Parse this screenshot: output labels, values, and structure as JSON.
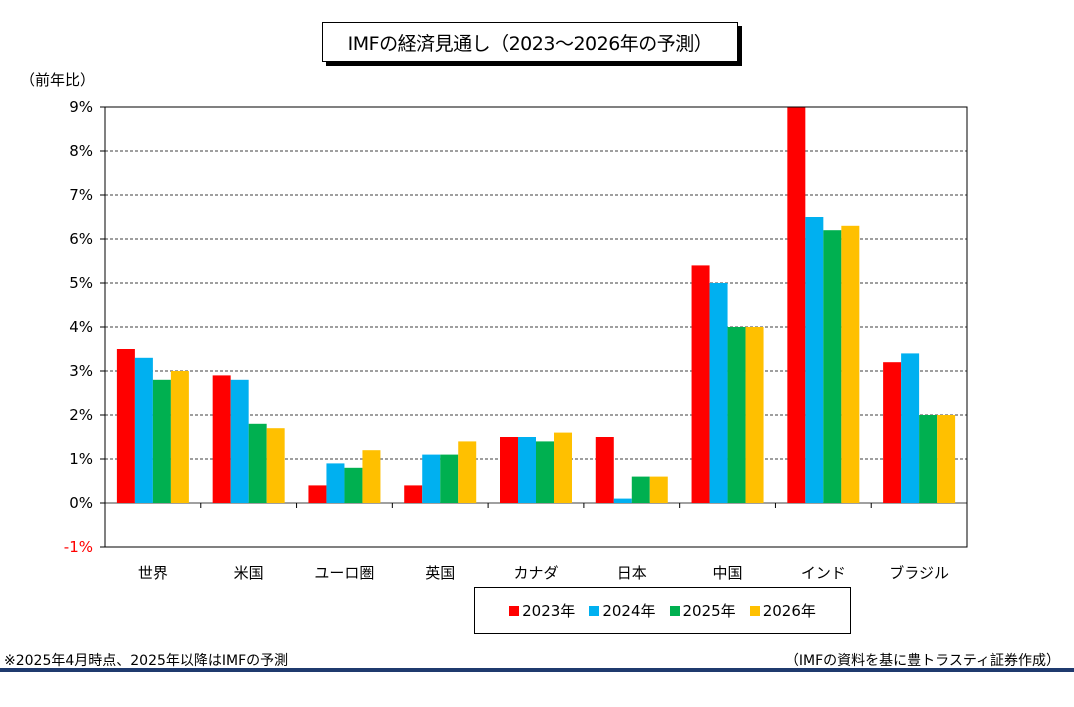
{
  "title": "IMFの経済見通し（2023〜2026年の予測）",
  "unit_label": "（前年比）",
  "footnote_left": "※2025年4月時点、2025年以降はIMFの予測",
  "footnote_right": "（IMFの資料を基に豊トラスティ証券作成）",
  "chart_data": {
    "type": "bar",
    "categories": [
      "世界",
      "米国",
      "ユーロ圏",
      "英国",
      "カナダ",
      "日本",
      "中国",
      "インド",
      "ブラジル"
    ],
    "series": [
      {
        "name": "2023年",
        "color": "#ff0000",
        "values": [
          3.5,
          2.9,
          0.4,
          0.4,
          1.5,
          1.5,
          5.4,
          9.2,
          3.2
        ]
      },
      {
        "name": "2024年",
        "color": "#00b0f0",
        "values": [
          3.3,
          2.8,
          0.9,
          1.1,
          1.5,
          0.1,
          5.0,
          6.5,
          3.4
        ]
      },
      {
        "name": "2025年",
        "color": "#00b050",
        "values": [
          2.8,
          1.8,
          0.8,
          1.1,
          1.4,
          0.6,
          4.0,
          6.2,
          2.0
        ]
      },
      {
        "name": "2026年",
        "color": "#ffc000",
        "values": [
          3.0,
          1.7,
          1.2,
          1.4,
          1.6,
          0.6,
          4.0,
          6.3,
          2.0
        ]
      }
    ],
    "y_ticks": [
      "-1%",
      "0%",
      "1%",
      "2%",
      "3%",
      "4%",
      "5%",
      "6%",
      "7%",
      "8%",
      "9%"
    ],
    "ylim": [
      -1,
      9
    ],
    "grid": true,
    "negative_tick_color": "#ff0000",
    "legend_position": "bottom"
  }
}
